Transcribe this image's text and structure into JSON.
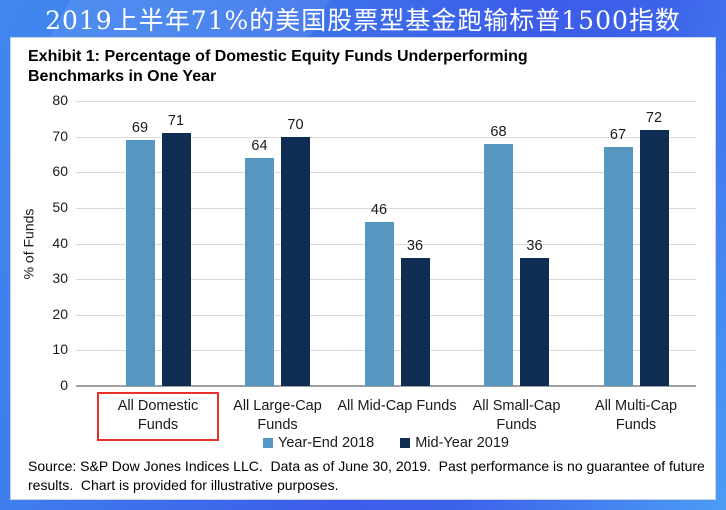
{
  "banner": {
    "title": "2019上半年71%的美国股票型基金跑输标普1500指数"
  },
  "exhibit": {
    "title": "Exhibit 1: Percentage of Domestic Equity Funds Underperforming Benchmarks in One Year",
    "source_text": "Source: S&P Dow Jones Indices LLC.  Data as of June 30, 2019.  Past performance is no guarantee of future results.  Chart is provided for illustrative purposes."
  },
  "chart_data": {
    "type": "bar",
    "title": "Exhibit 1: Percentage of Domestic Equity Funds Underperforming Benchmarks in One Year",
    "categories": [
      "All Domestic Funds",
      "All Large-Cap Funds",
      "All Mid-Cap Funds",
      "All Small-Cap Funds",
      "All Multi-Cap Funds"
    ],
    "series": [
      {
        "name": "Year-End 2018",
        "color": "#5697c1",
        "values": [
          69,
          64,
          46,
          68,
          67
        ]
      },
      {
        "name": "Mid-Year 2019",
        "color": "#0f2d52",
        "values": [
          71,
          70,
          36,
          36,
          72
        ]
      }
    ],
    "xlabel": "",
    "ylabel": "% of Funds",
    "ylim": [
      0,
      80
    ],
    "yticks": [
      0,
      10,
      20,
      30,
      40,
      50,
      60,
      70,
      80
    ],
    "grid": true,
    "legend_position": "bottom",
    "highlighted_category_index": 0,
    "highlight_color": "#e8312a"
  },
  "colors": {
    "banner_background_left": "#4186ef",
    "banner_background_mid": "#3c5ce9",
    "banner_background_bottom_right": "#4b9df5",
    "banner_text": "#ffffff",
    "card_background": "#ffffff",
    "gridline": "#d9d9d9",
    "axis_line": "#a0a0a0",
    "text": "#1a1a1a"
  }
}
